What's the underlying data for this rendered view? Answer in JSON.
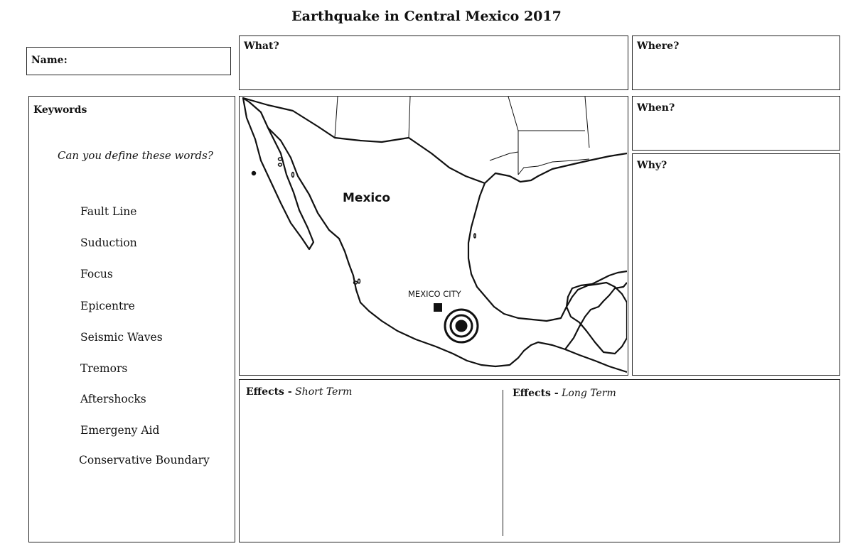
{
  "title": "Earthquake in Central Mexico 2017",
  "name_box": {
    "label": "Name:"
  },
  "what_box": {
    "label": "What?"
  },
  "where_box": {
    "label": "Where?"
  },
  "when_box": {
    "label": "When?"
  },
  "why_box": {
    "label": "Why?"
  },
  "keywords": {
    "heading": "Keywords",
    "prompt": "Can you define these words?",
    "items": [
      "Fault Line",
      "Suduction",
      "Focus",
      "Epicentre",
      "Seismic Waves",
      "Tremors",
      "Aftershocks",
      "Emergeny Aid",
      "Conservative Boundary"
    ]
  },
  "map": {
    "country_label": "Mexico",
    "city_label": "MEXICO CITY"
  },
  "effects": {
    "short_prefix": "Effects -",
    "short_term": "Short Term",
    "long_prefix": "Effects -",
    "long_term": "Long Term"
  }
}
